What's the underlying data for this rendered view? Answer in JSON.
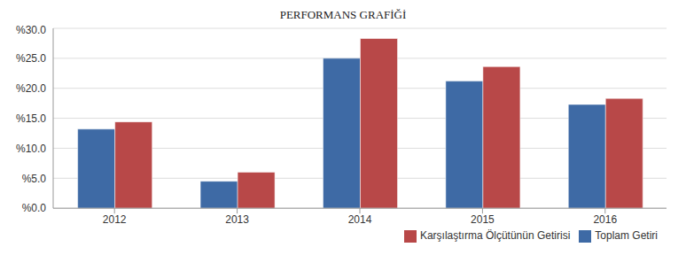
{
  "chart_data": {
    "type": "bar",
    "title": "PERFORMANS GRAFİĞİ",
    "categories": [
      "2012",
      "2013",
      "2014",
      "2015",
      "2016"
    ],
    "series": [
      {
        "name": "Toplam Getiri",
        "color": "#3e6aa5",
        "values": [
          13.2,
          4.5,
          25.0,
          21.2,
          17.3
        ]
      },
      {
        "name": "Karşılaştırma Ölçütünün Getirisi",
        "color": "#b84848",
        "values": [
          14.4,
          6.0,
          28.3,
          23.6,
          18.3
        ]
      }
    ],
    "ylim": [
      0,
      30
    ],
    "yticks": [
      {
        "value": 0,
        "label": "%0.0"
      },
      {
        "value": 5,
        "label": "%5.0"
      },
      {
        "value": 10,
        "label": "%10.0"
      },
      {
        "value": 15,
        "label": "%15.0"
      },
      {
        "value": 20,
        "label": "%20.0"
      },
      {
        "value": 25,
        "label": "%25.0"
      },
      {
        "value": 30,
        "label": "%30.0"
      }
    ],
    "grid": true,
    "legend": "lower right"
  }
}
